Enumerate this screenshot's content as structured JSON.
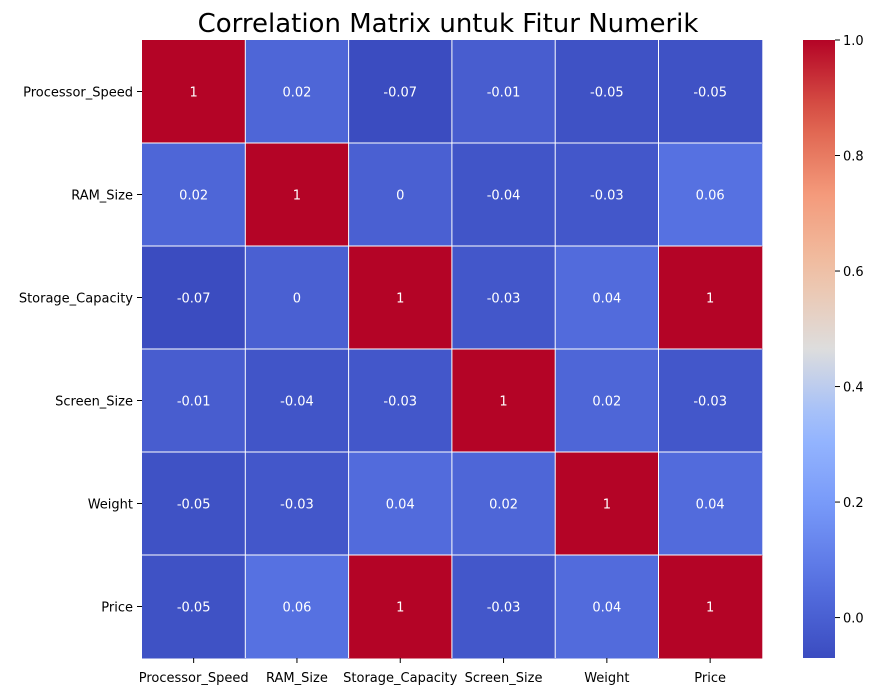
{
  "chart_data": {
    "type": "heatmap",
    "title": "Correlation Matrix untuk Fitur Numerik",
    "xlabel": "",
    "ylabel": "",
    "rows": [
      "Processor_Speed",
      "RAM_Size",
      "Storage_Capacity",
      "Screen_Size",
      "Weight",
      "Price"
    ],
    "columns": [
      "Processor_Speed",
      "RAM_Size",
      "Storage_Capacity",
      "Screen_Size",
      "Weight",
      "Price"
    ],
    "values": [
      [
        1,
        0.02,
        -0.07,
        -0.01,
        -0.05,
        -0.05
      ],
      [
        0.02,
        1,
        0,
        -0.04,
        -0.03,
        0.06
      ],
      [
        -0.07,
        0,
        1,
        -0.03,
        0.04,
        1
      ],
      [
        -0.01,
        -0.04,
        -0.03,
        1,
        0.02,
        -0.03
      ],
      [
        -0.05,
        -0.03,
        0.04,
        0.02,
        1,
        0.04
      ],
      [
        -0.05,
        0.06,
        1,
        -0.03,
        0.04,
        1
      ]
    ],
    "colormap": "coolwarm",
    "vmin": -0.07,
    "vmax": 1,
    "colorbar_ticks": [
      0.0,
      0.2,
      0.4,
      0.6,
      0.8,
      1.0
    ],
    "colorbar_tick_labels": [
      "0.0",
      "0.2",
      "0.4",
      "0.6",
      "0.8",
      "1.0"
    ],
    "gridline_color": "#ffffff"
  }
}
